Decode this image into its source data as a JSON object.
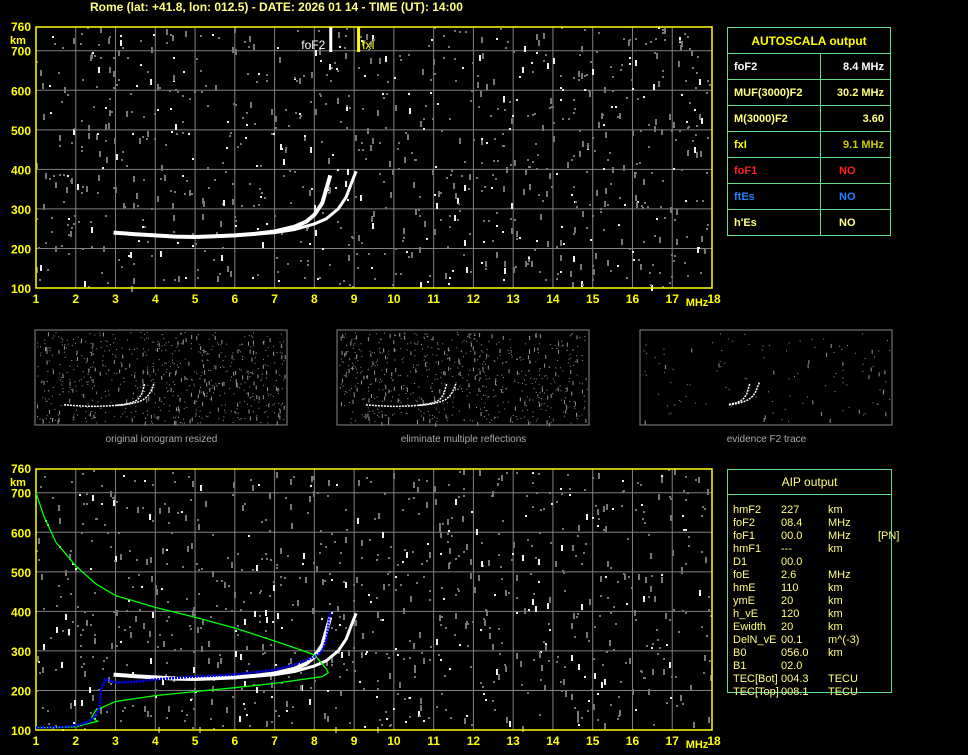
{
  "title": "Rome (lat: +41.8, lon: 012.5) - DATE: 2026 01 14 - TIME (UT): 14:00",
  "colors": {
    "axis": "#ffff00",
    "grid": "#808080",
    "trace": "#ffffff",
    "profile": "#00ff00",
    "fit": "#0000ff",
    "table_border": "#66dd88"
  },
  "chart_data": [
    {
      "type": "scatter",
      "name": "ionogram",
      "xlabel": "MHz",
      "ylabel": "km",
      "xlim": [
        1,
        18
      ],
      "ylim": [
        100,
        760
      ],
      "grid": true,
      "xticks": [
        "1",
        "2",
        "3",
        "4",
        "5",
        "6",
        "7",
        "8",
        "9",
        "10",
        "11",
        "12",
        "13",
        "14",
        "15",
        "16",
        "17",
        "18"
      ],
      "yticks": [
        "100",
        "200",
        "300",
        "400",
        "500",
        "600",
        "700",
        "760"
      ],
      "markers": [
        {
          "label": "foF2",
          "x": 8.4,
          "color": "#ffffff"
        },
        {
          "label": "fxI",
          "x": 9.1,
          "color": "#ffff00"
        }
      ],
      "o_trace": [
        [
          2.95,
          240
        ],
        [
          3.5,
          236
        ],
        [
          4,
          233
        ],
        [
          4.5,
          230
        ],
        [
          5,
          229
        ],
        [
          5.5,
          231
        ],
        [
          6,
          233
        ],
        [
          6.5,
          237
        ],
        [
          7,
          243
        ],
        [
          7.5,
          255
        ],
        [
          7.8,
          268
        ],
        [
          8,
          285
        ],
        [
          8.2,
          315
        ],
        [
          8.3,
          350
        ],
        [
          8.4,
          385
        ]
      ],
      "x_trace": [
        [
          6.5,
          236
        ],
        [
          7,
          240
        ],
        [
          7.5,
          248
        ],
        [
          8,
          262
        ],
        [
          8.3,
          275
        ],
        [
          8.6,
          300
        ],
        [
          8.8,
          330
        ],
        [
          8.95,
          370
        ],
        [
          9.05,
          395
        ]
      ]
    },
    {
      "type": "line",
      "name": "aip",
      "xlabel": "MHz",
      "ylabel": "km",
      "xlim": [
        1,
        18
      ],
      "ylim": [
        100,
        760
      ],
      "grid": true,
      "profile": [
        [
          1,
          700
        ],
        [
          1.2,
          640
        ],
        [
          1.5,
          575
        ],
        [
          2,
          515
        ],
        [
          2.5,
          470
        ],
        [
          3,
          440
        ],
        [
          4,
          410
        ],
        [
          5,
          385
        ],
        [
          6,
          358
        ],
        [
          7,
          325
        ],
        [
          7.5,
          308
        ],
        [
          8,
          290
        ],
        [
          8.3,
          255
        ],
        [
          8.35,
          245
        ],
        [
          8.2,
          235
        ],
        [
          7,
          218
        ],
        [
          6,
          207
        ],
        [
          5,
          197
        ],
        [
          4,
          187
        ],
        [
          3,
          172
        ],
        [
          2.5,
          150
        ],
        [
          2.4,
          132
        ],
        [
          2.55,
          122
        ],
        [
          2.3,
          116
        ],
        [
          2,
          108
        ],
        [
          1.5,
          106
        ],
        [
          1,
          106
        ]
      ],
      "fit": [
        [
          1,
          106
        ],
        [
          1.6,
          107
        ],
        [
          2,
          111
        ],
        [
          2.3,
          120
        ],
        [
          2.5,
          135
        ],
        [
          2.6,
          160
        ],
        [
          2.65,
          210
        ],
        [
          2.75,
          228
        ],
        [
          3,
          220
        ],
        [
          3.5,
          222
        ],
        [
          4,
          228
        ],
        [
          5,
          235
        ],
        [
          6,
          240
        ],
        [
          7,
          252
        ],
        [
          7.5,
          265
        ],
        [
          8,
          285
        ],
        [
          8.2,
          300
        ],
        [
          8.3,
          330
        ],
        [
          8.4,
          400
        ]
      ]
    }
  ],
  "thumbnails": [
    {
      "caption": "original ionogram resized"
    },
    {
      "caption": "eliminate multiple reflections"
    },
    {
      "caption": "evidence F2 trace"
    }
  ],
  "autoscala": {
    "header": "AUTOSCALA output",
    "rows": [
      {
        "k": "foF2",
        "v": "8.4 MHz",
        "kc": "#ffffff",
        "vc": "#ffffff"
      },
      {
        "k": "MUF(3000)F2",
        "v": "30.2 MHz",
        "kc": "#ffff80",
        "vc": "#ffff80"
      },
      {
        "k": "M(3000)F2",
        "v": "3.60",
        "kc": "#ffff80",
        "vc": "#ffff80"
      },
      {
        "k": "fxI",
        "v": "9.1 MHz",
        "kc": "#ffff00",
        "vc": "#cccc00"
      },
      {
        "k": "foF1",
        "v": "NO",
        "kc": "#ff2020",
        "vc": "#ff2020"
      },
      {
        "k": "ftEs",
        "v": "NO",
        "kc": "#2080ff",
        "vc": "#2080ff"
      },
      {
        "k": "h'Es",
        "v": "NO",
        "kc": "#ffff80",
        "vc": "#ffff80"
      }
    ]
  },
  "aip": {
    "header": "AIP output",
    "rows": [
      [
        "hmF2",
        "227",
        "km",
        ""
      ],
      [
        "foF2",
        "08.4",
        "MHz",
        ""
      ],
      [
        "foF1",
        "00.0",
        "MHz",
        "[PN]"
      ],
      [
        "hmF1",
        "---",
        "km",
        ""
      ],
      [
        "D1",
        "00.0",
        "",
        ""
      ],
      [
        "foE",
        "2.6",
        "MHz",
        ""
      ],
      [
        "hmE",
        "110",
        "km",
        ""
      ],
      [
        "ymE",
        "20",
        "km",
        ""
      ],
      [
        "h_vE",
        "120",
        "km",
        ""
      ],
      [
        "Ewidth",
        "20",
        "km",
        ""
      ],
      [
        "DelN_vE",
        "00.1",
        "m^(-3)",
        ""
      ],
      [
        "B0",
        "056.0",
        "km",
        ""
      ],
      [
        "B1",
        "02.0",
        "",
        ""
      ],
      [
        "TEC[Bot]",
        "004.3",
        "TECU",
        ""
      ],
      [
        "TEC[Top]",
        "008.1",
        "TECU",
        ""
      ]
    ]
  }
}
